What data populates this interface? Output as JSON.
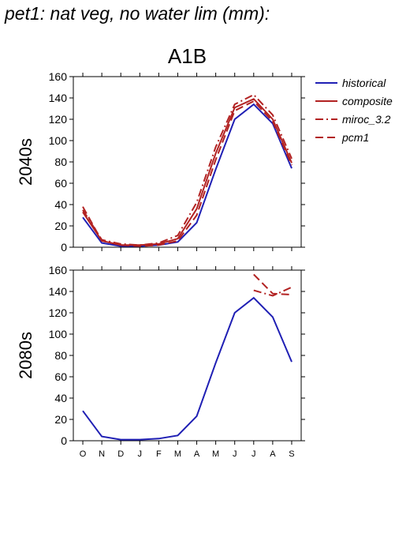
{
  "figure_title": "pet1: nat veg, no water lim (mm):",
  "legend": {
    "items": [
      {
        "label": "historical",
        "color": "#1f1fb4",
        "dash": "solid"
      },
      {
        "label": "composite",
        "color": "#b22222",
        "dash": "solid"
      },
      {
        "label": "miroc_3.2",
        "color": "#b22222",
        "dash": "dashdot"
      },
      {
        "label": "pcm1",
        "color": "#b22222",
        "dash": "dashed"
      }
    ]
  },
  "chart_data": [
    {
      "type": "line",
      "title": "A1B",
      "ylabel": "2040s",
      "xlabel": "",
      "categories": [
        "O",
        "N",
        "D",
        "J",
        "F",
        "M",
        "A",
        "M",
        "J",
        "J",
        "A",
        "S"
      ],
      "ylim": [
        0,
        160
      ],
      "yticks": [
        0,
        20,
        40,
        60,
        80,
        100,
        120,
        140,
        160
      ],
      "show_xtick_labels": false,
      "grid": false,
      "series": [
        {
          "name": "historical",
          "color": "#1f1fb4",
          "dash": "solid",
          "values": [
            28,
            4,
            1,
            1,
            2,
            5,
            23,
            73,
            120,
            134,
            116,
            74
          ]
        },
        {
          "name": "composite",
          "color": "#b22222",
          "dash": "solid",
          "values": [
            33,
            6,
            2,
            2,
            3,
            8,
            36,
            88,
            131,
            139,
            120,
            79
          ]
        },
        {
          "name": "miroc_3.2",
          "color": "#b22222",
          "dash": "dashdot",
          "values": [
            35,
            7,
            3,
            2,
            4,
            11,
            42,
            94,
            134,
            143,
            124,
            83
          ]
        },
        {
          "name": "pcm1",
          "color": "#b22222",
          "dash": "dashed",
          "values": [
            38,
            6,
            2,
            1,
            2,
            6,
            30,
            82,
            128,
            137,
            118,
            77
          ]
        }
      ]
    },
    {
      "type": "line",
      "title": "",
      "ylabel": "2080s",
      "xlabel": "",
      "categories": [
        "O",
        "N",
        "D",
        "J",
        "F",
        "M",
        "A",
        "M",
        "J",
        "J",
        "A",
        "S"
      ],
      "ylim": [
        0,
        160
      ],
      "yticks": [
        0,
        20,
        40,
        60,
        80,
        100,
        120,
        140,
        160
      ],
      "show_xtick_labels": true,
      "grid": false,
      "series": [
        {
          "name": "historical",
          "color": "#1f1fb4",
          "dash": "solid",
          "values": [
            28,
            4,
            1,
            1,
            2,
            5,
            23,
            73,
            120,
            134,
            116,
            74
          ]
        },
        {
          "name": "miroc_3.2",
          "color": "#b22222",
          "dash": "dashdot",
          "values": [
            null,
            null,
            null,
            null,
            null,
            null,
            null,
            null,
            null,
            141,
            136,
            144
          ]
        },
        {
          "name": "pcm1",
          "color": "#b22222",
          "dash": "dashed",
          "values": [
            null,
            null,
            null,
            null,
            null,
            null,
            null,
            null,
            null,
            156,
            138,
            137
          ]
        }
      ]
    }
  ]
}
